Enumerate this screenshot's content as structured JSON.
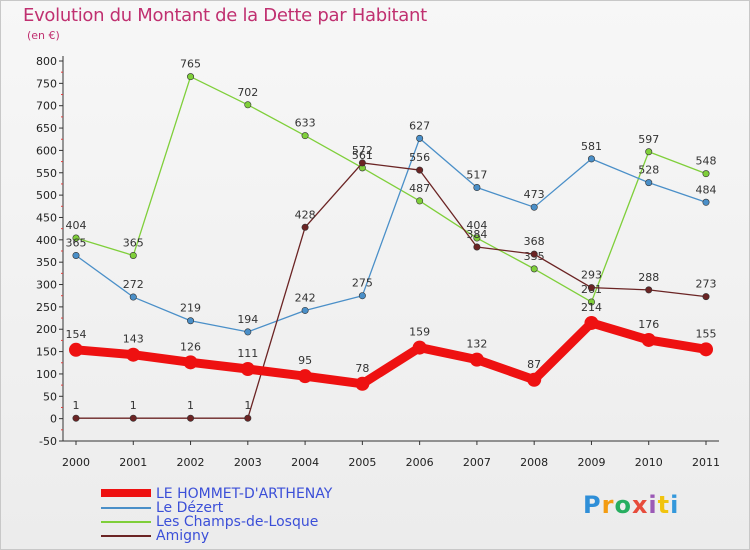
{
  "header": {
    "title": "Evolution du Montant de la Dette par Habitant",
    "subtitle": "(en €)"
  },
  "logo": {
    "text": "Proxiti",
    "colors": [
      "#2f8fd8",
      "#f39c12",
      "#27ae60",
      "#e74c3c",
      "#9b59b6",
      "#f1c40f",
      "#3498db"
    ]
  },
  "chart_data": {
    "type": "line",
    "x": [
      "2000",
      "2001",
      "2002",
      "2003",
      "2004",
      "2005",
      "2006",
      "2007",
      "2008",
      "2009",
      "2010",
      "2011"
    ],
    "ylim": [
      -50,
      800
    ],
    "yticks": [
      -50,
      0,
      50,
      100,
      150,
      200,
      250,
      300,
      350,
      400,
      450,
      500,
      550,
      600,
      650,
      700,
      750,
      800
    ],
    "grid": false,
    "legend_position": "bottom-left",
    "series": [
      {
        "name": "LE HOMMET-D'ARTHENAY",
        "color": "#ee1111",
        "values": [
          154,
          143,
          126,
          111,
          95,
          78,
          159,
          132,
          87,
          214,
          176,
          155
        ]
      },
      {
        "name": "Le Dézert",
        "color": "#4a8fc8",
        "values": [
          365,
          272,
          219,
          194,
          242,
          275,
          627,
          517,
          473,
          581,
          528,
          484
        ]
      },
      {
        "name": "Les Champs-de-Losque",
        "color": "#7fcf3a",
        "values": [
          404,
          365,
          765,
          702,
          633,
          561,
          487,
          404,
          335,
          261,
          597,
          548
        ]
      },
      {
        "name": "Amigny",
        "color": "#6b2424",
        "values": [
          1,
          1,
          1,
          1,
          428,
          572,
          556,
          384,
          368,
          293,
          288,
          273
        ]
      }
    ]
  }
}
